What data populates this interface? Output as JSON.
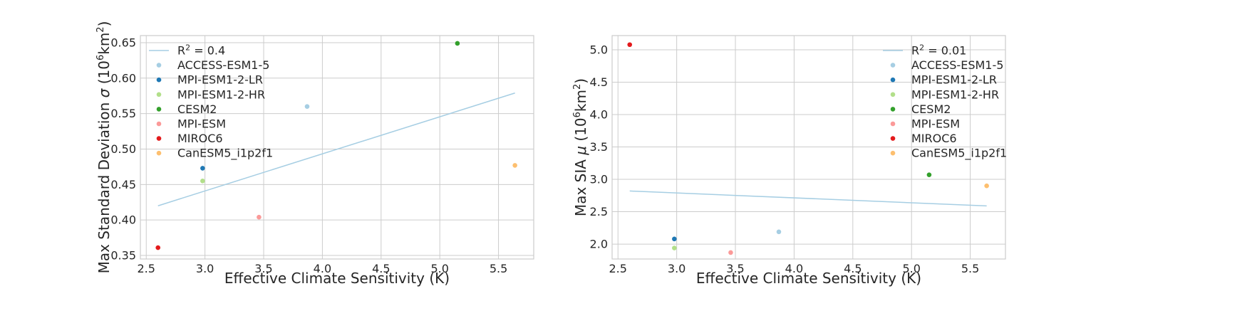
{
  "chart_data": [
    {
      "type": "scatter",
      "xlabel": "Effective Climate Sensitivity (K)",
      "ylabel_parts": [
        "Max Standard Deviation ",
        "σ",
        " (10",
        "6",
        "km",
        "2",
        ")"
      ],
      "xlim": [
        2.45,
        5.8
      ],
      "ylim": [
        0.345,
        0.66
      ],
      "xticks": [
        2.5,
        3.0,
        3.5,
        4.0,
        4.5,
        5.0,
        5.5
      ],
      "yticks": [
        0.35,
        0.4,
        0.45,
        0.5,
        0.55,
        0.6,
        0.65
      ],
      "yticks_decimals": 2,
      "legend_position": "upper-left",
      "fit": {
        "label_prefix": "R",
        "label_sup": "2",
        "label_value": " = 0.4",
        "x": [
          2.6,
          5.64
        ],
        "y": [
          0.42,
          0.579
        ],
        "color": "#a6cee3"
      },
      "series": [
        {
          "name": "ACCESS-ESM1-5",
          "color": "#a6cee3",
          "x": 3.87,
          "y": 0.56
        },
        {
          "name": "MPI-ESM1-2-LR",
          "color": "#1f78b4",
          "x": 2.98,
          "y": 0.473
        },
        {
          "name": "MPI-ESM1-2-HR",
          "color": "#b2df8a",
          "x": 2.98,
          "y": 0.455
        },
        {
          "name": "CESM2",
          "color": "#33a02c",
          "x": 5.15,
          "y": 0.649
        },
        {
          "name": "MPI-ESM",
          "color": "#fb9a99",
          "x": 3.46,
          "y": 0.404
        },
        {
          "name": "MIROC6",
          "color": "#e31a1c",
          "x": 2.6,
          "y": 0.361
        },
        {
          "name": "CanESM5_i1p2f1",
          "color": "#fdbf6f",
          "x": 5.64,
          "y": 0.477
        }
      ]
    },
    {
      "type": "scatter",
      "xlabel": "Effective Climate Sensitivity (K)",
      "ylabel_parts": [
        "Max SIA ",
        "μ",
        " (10",
        "6",
        "km",
        "2",
        ")"
      ],
      "xlim": [
        2.45,
        5.8
      ],
      "ylim": [
        1.77,
        5.22
      ],
      "xticks": [
        2.5,
        3.0,
        3.5,
        4.0,
        4.5,
        5.0,
        5.5
      ],
      "yticks": [
        2.0,
        2.5,
        3.0,
        3.5,
        4.0,
        4.5,
        5.0
      ],
      "yticks_decimals": 1,
      "legend_position": "upper-right",
      "fit": {
        "label_prefix": "R",
        "label_sup": "2",
        "label_value": " = 0.01",
        "x": [
          2.6,
          5.64
        ],
        "y": [
          2.82,
          2.59
        ],
        "color": "#a6cee3"
      },
      "series": [
        {
          "name": "ACCESS-ESM1-5",
          "color": "#a6cee3",
          "x": 3.87,
          "y": 2.19
        },
        {
          "name": "MPI-ESM1-2-LR",
          "color": "#1f78b4",
          "x": 2.98,
          "y": 2.08
        },
        {
          "name": "MPI-ESM1-2-HR",
          "color": "#b2df8a",
          "x": 2.98,
          "y": 1.94
        },
        {
          "name": "CESM2",
          "color": "#33a02c",
          "x": 5.15,
          "y": 3.07
        },
        {
          "name": "MPI-ESM",
          "color": "#fb9a99",
          "x": 3.46,
          "y": 1.87
        },
        {
          "name": "MIROC6",
          "color": "#e31a1c",
          "x": 2.6,
          "y": 5.08
        },
        {
          "name": "CanESM5_i1p2f1",
          "color": "#fdbf6f",
          "x": 5.64,
          "y": 2.9
        }
      ]
    }
  ]
}
